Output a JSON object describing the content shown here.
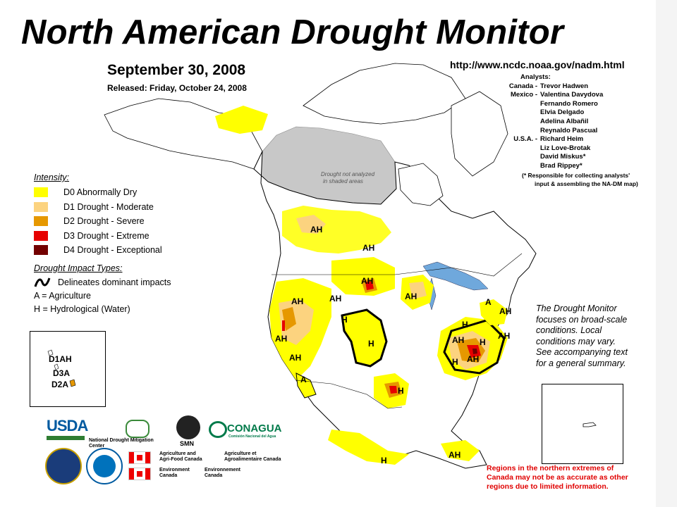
{
  "title": "North American Drought Monitor",
  "date": "September 30, 2008",
  "released": "Released:  Friday, October 24, 2008",
  "url": "http://www.ncdc.noaa.gov/nadm.html",
  "analysts": {
    "header": "Analysts:",
    "rows": [
      {
        "country": "Canada -",
        "name": "Trevor Hadwen"
      },
      {
        "country": "Mexico -",
        "name": "Valentina Davydova"
      },
      {
        "country": "",
        "name": "Fernando Romero"
      },
      {
        "country": "",
        "name": "Elvia Delgado"
      },
      {
        "country": "",
        "name": "Adelina Albañil"
      },
      {
        "country": "",
        "name": "Reynaldo Pascual"
      },
      {
        "country": "U.S.A. -",
        "name": "Richard Heim"
      },
      {
        "country": "",
        "name": "Liz Love-Brotak"
      },
      {
        "country": "",
        "name": "David Miskus*"
      },
      {
        "country": "",
        "name": "Brad Rippey*"
      }
    ],
    "note1": "(* Responsible for collecting analysts'",
    "note2": "input & assembling the NA-DM map)"
  },
  "legend": {
    "intensity_title": "Intensity:",
    "intensity": [
      {
        "label": "D0 Abnormally Dry",
        "color": "#ffff00"
      },
      {
        "label": "D1 Drought - Moderate",
        "color": "#fcd37f"
      },
      {
        "label": "D2 Drought - Severe",
        "color": "#e69800"
      },
      {
        "label": "D3 Drought - Extreme",
        "color": "#e60000"
      },
      {
        "label": "D4 Drought - Exceptional",
        "color": "#730000"
      }
    ],
    "impact_title": "Drought Impact Types:",
    "impact_line": "Delineates dominant impacts",
    "impact_a": "A = Agriculture",
    "impact_h": "H = Hydrological (Water)"
  },
  "map": {
    "not_analyzed_1": "Drought not analyzed",
    "not_analyzed_2": "in shaded areas",
    "labels": [
      "AH",
      "AH",
      "AH",
      "AH",
      "AH",
      "AH",
      "AH",
      "AH",
      "AH",
      "AH",
      "AH",
      "AH",
      "H",
      "H",
      "H",
      "H",
      "H",
      "H",
      "H",
      "A",
      "A",
      "AH"
    ],
    "colors": {
      "ocean": "#ffffff",
      "land": "#ffffff",
      "water": "#6fa8dc",
      "not_analyzed": "#c8c8c8",
      "border": "#000000"
    }
  },
  "alaska_inset": {
    "d1": "D1AH",
    "d3": "D3A",
    "d2": "D2A"
  },
  "caveat": [
    "The Drought Monitor",
    "focuses on broad-scale",
    "conditions.  Local",
    "conditions may vary.",
    "See accompanying text",
    "for a general summary."
  ],
  "north_warning": [
    "Regions in the northern extremes of",
    "Canada may not be as accurate as other",
    "regions due to limited information."
  ],
  "logos": {
    "usda": "USDA",
    "ndmc": "National Drought Mitigation Center",
    "smn": "SMN",
    "conagua": "CONAGUA",
    "conagua_sub": "Comisión Nacional del Agua",
    "agr1": "Agriculture and",
    "agr2": "Agri-Food Canada",
    "agr3": "Agriculture et",
    "agr4": "Agroalimentaire Canada",
    "env1": "Environment",
    "env2": "Canada",
    "env3": "Environnement",
    "env4": "Canada"
  }
}
